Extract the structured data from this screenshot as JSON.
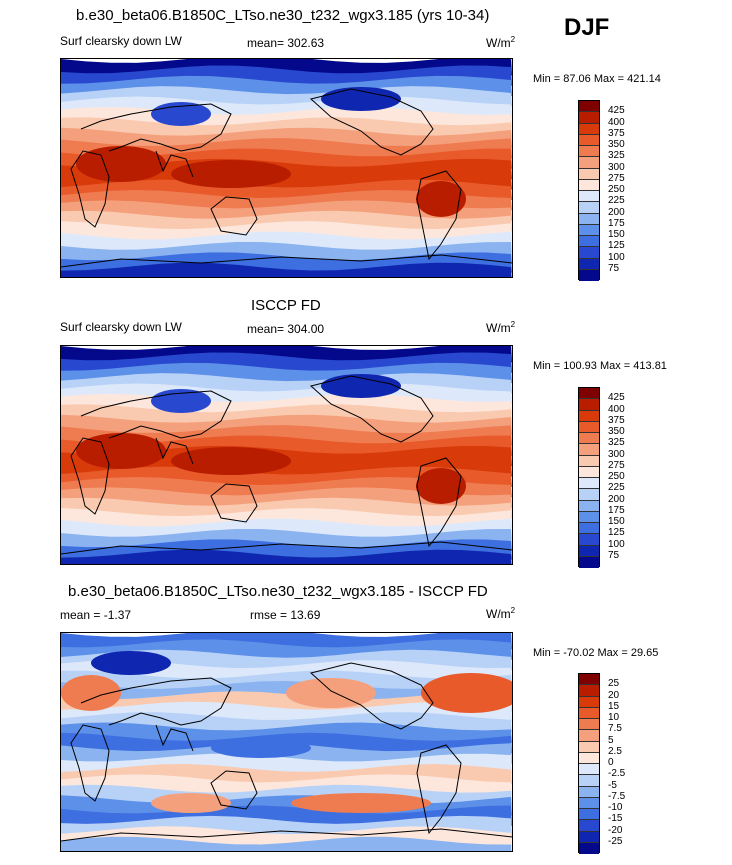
{
  "season": "DJF",
  "colors": {
    "levels_abs": [
      "#7f0000",
      "#b81d00",
      "#d93a0a",
      "#e85a2a",
      "#ef7b50",
      "#f4a07c",
      "#f9cab0",
      "#fde7dc",
      "#dde9fb",
      "#b8d2f7",
      "#8ab3f0",
      "#5d90e8",
      "#3d6fe0",
      "#2849cf",
      "#0f26b0",
      "#04088a"
    ],
    "levels_diff": [
      "#7f0000",
      "#b81d00",
      "#d93a0a",
      "#e85a2a",
      "#ef7b50",
      "#f4a07c",
      "#f9cab0",
      "#fde7dc",
      "#dde9fb",
      "#b8d2f7",
      "#8ab3f0",
      "#5d90e8",
      "#3d6fe0",
      "#2849cf",
      "#0f26b0",
      "#04088a"
    ]
  },
  "chart_data": [
    {
      "type": "heatmap",
      "title": "b.e30_beta06.B1850C_LTso.ne30_t232_wgx3.185 (yrs 10-34)",
      "variable": "Surf clearsky down LW",
      "mean_label": "mean= 302.63",
      "units": "W/m",
      "units_exp": "2",
      "min_max": "Min =  87.06 Max = 421.14",
      "min": 87.06,
      "max": 421.14,
      "mean": 302.63,
      "colorbar_ticks": [
        "425",
        "400",
        "375",
        "350",
        "325",
        "300",
        "275",
        "250",
        "225",
        "200",
        "175",
        "150",
        "125",
        "100",
        "75"
      ]
    },
    {
      "type": "heatmap",
      "title": "ISCCP FD",
      "variable": "Surf clearsky down LW",
      "mean_label": "mean= 304.00",
      "units": "W/m",
      "units_exp": "2",
      "min_max": "Min = 100.93 Max = 413.81",
      "min": 100.93,
      "max": 413.81,
      "mean": 304.0,
      "colorbar_ticks": [
        "425",
        "400",
        "375",
        "350",
        "325",
        "300",
        "275",
        "250",
        "225",
        "200",
        "175",
        "150",
        "125",
        "100",
        "75"
      ]
    },
    {
      "type": "heatmap",
      "title": "b.e30_beta06.B1850C_LTso.ne30_t232_wgx3.185 - ISCCP FD",
      "mean_label": "mean =  -1.37",
      "rmse_label": "rmse =  13.69",
      "units": "W/m",
      "units_exp": "2",
      "min_max": "Min = -70.02 Max =  29.65",
      "min": -70.02,
      "max": 29.65,
      "mean": -1.37,
      "rmse": 13.69,
      "colorbar_ticks": [
        "25",
        "20",
        "15",
        "10",
        "7.5",
        "5",
        "2.5",
        "0",
        "-2.5",
        "-5",
        "-7.5",
        "-10",
        "-15",
        "-20",
        "-25"
      ]
    }
  ]
}
